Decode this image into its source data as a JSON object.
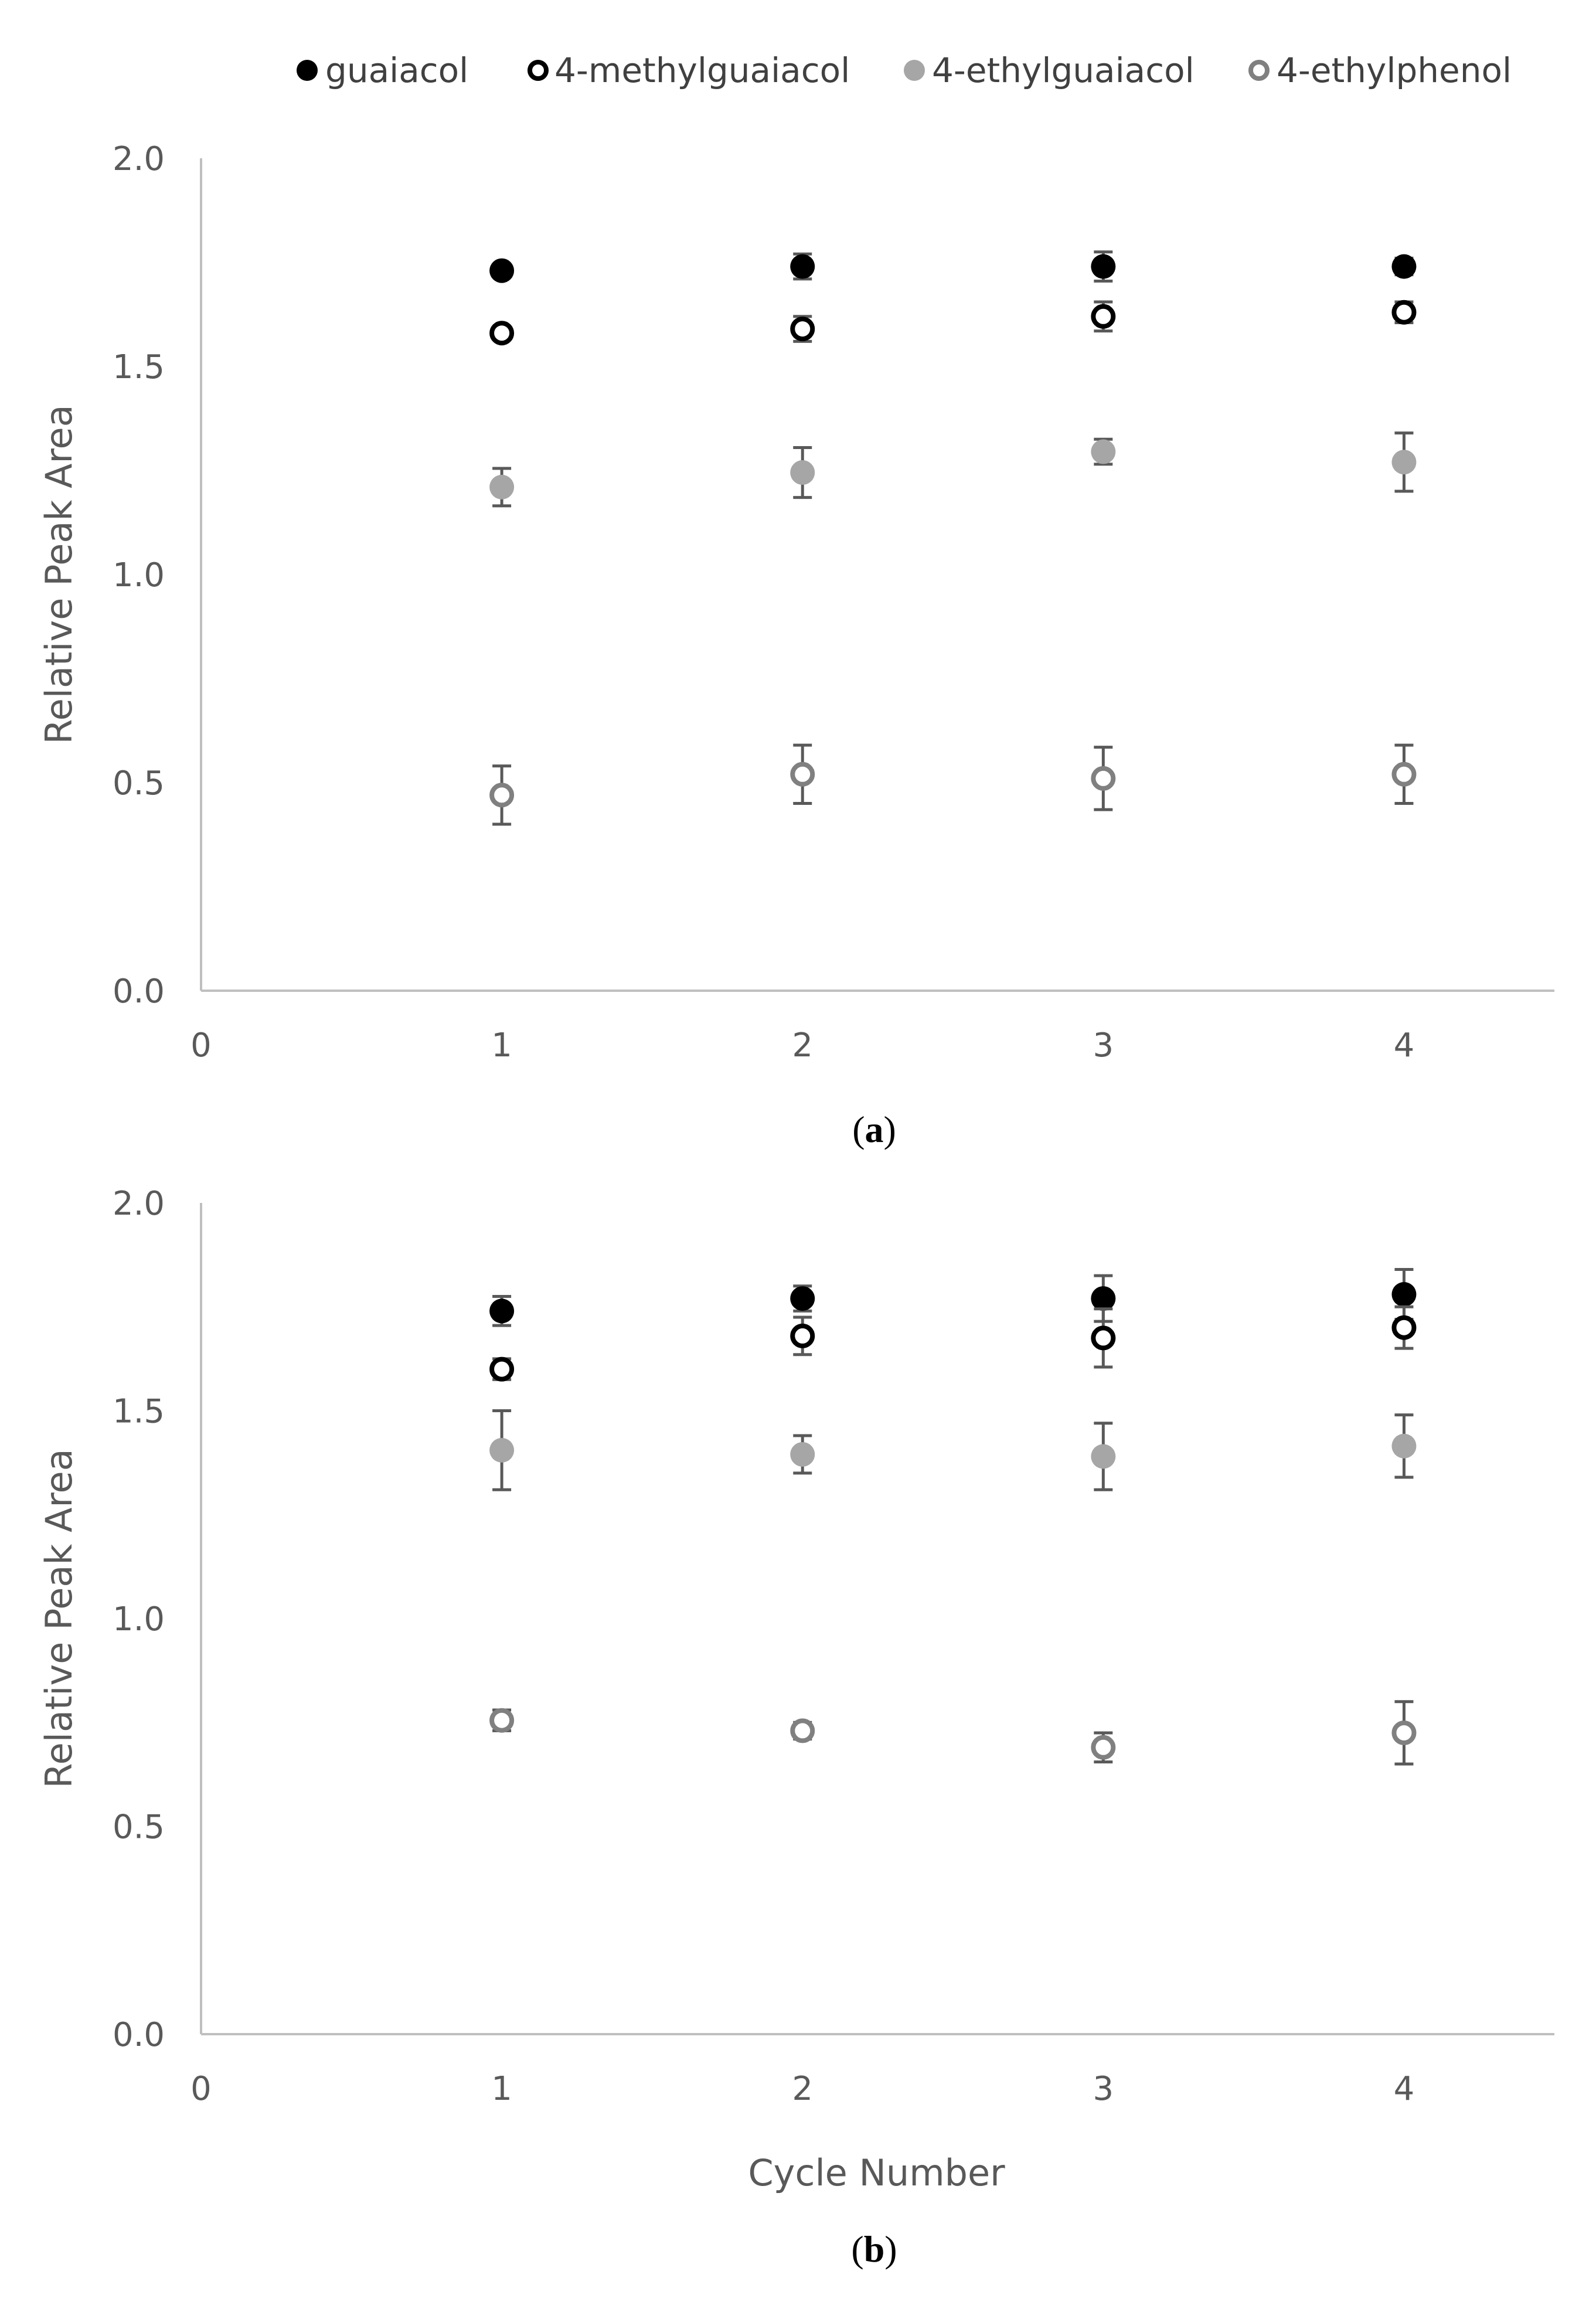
{
  "legend": [
    {
      "name": "guaiacol",
      "marker": "filled",
      "color": "#000000"
    },
    {
      "name": "4-methylguaiacol",
      "marker": "open",
      "color": "#000000"
    },
    {
      "name": "4-ethylguaiacol",
      "marker": "filled",
      "color": "#a6a6a6"
    },
    {
      "name": "4-ethylphenol",
      "marker": "open",
      "color": "#808080"
    }
  ],
  "colors": {
    "axis": "#bfbfbf",
    "tick_text": "#595959",
    "error_bar": "#595959"
  },
  "chart_data": [
    {
      "type": "scatter",
      "panel_label": "a",
      "xlabel": "",
      "ylabel": "Relative Peak Area",
      "xlim": [
        0,
        4.5
      ],
      "ylim": [
        0,
        2.0
      ],
      "x_ticks": [
        "0",
        "1",
        "2",
        "3",
        "4"
      ],
      "y_ticks": [
        "0.0",
        "0.5",
        "1.0",
        "1.5",
        "2.0"
      ],
      "grid": false,
      "legend_position": "top",
      "x": [
        1,
        2,
        3,
        4
      ],
      "series": [
        {
          "name": "guaiacol",
          "values": [
            1.73,
            1.74,
            1.74,
            1.74
          ],
          "error": [
            0.015,
            0.03,
            0.035,
            0.02
          ]
        },
        {
          "name": "4-methylguaiacol",
          "values": [
            1.58,
            1.59,
            1.62,
            1.63
          ],
          "error": [
            0.01,
            0.03,
            0.035,
            0.025
          ]
        },
        {
          "name": "4-ethylguaiacol",
          "values": [
            1.21,
            1.245,
            1.295,
            1.27
          ],
          "error": [
            0.045,
            0.06,
            0.03,
            0.07
          ]
        },
        {
          "name": "4-ethylphenol",
          "values": [
            0.47,
            0.52,
            0.51,
            0.52
          ],
          "error": [
            0.07,
            0.07,
            0.075,
            0.07
          ]
        }
      ]
    },
    {
      "type": "scatter",
      "panel_label": "b",
      "xlabel": "Cycle Number",
      "ylabel": "Relative Peak Area",
      "xlim": [
        0,
        4.5
      ],
      "ylim": [
        0,
        2.0
      ],
      "x_ticks": [
        "0",
        "1",
        "2",
        "3",
        "4"
      ],
      "y_ticks": [
        "0.0",
        "0.5",
        "1.0",
        "1.5",
        "2.0"
      ],
      "grid": false,
      "legend_position": "none",
      "x": [
        1,
        2,
        3,
        4
      ],
      "series": [
        {
          "name": "guaiacol",
          "values": [
            1.74,
            1.77,
            1.77,
            1.78
          ],
          "error": [
            0.035,
            0.03,
            0.055,
            0.06
          ]
        },
        {
          "name": "4-methylguaiacol",
          "values": [
            1.6,
            1.68,
            1.675,
            1.7
          ],
          "error": [
            0.025,
            0.045,
            0.07,
            0.05
          ]
        },
        {
          "name": "4-ethylguaiacol",
          "values": [
            1.405,
            1.395,
            1.39,
            1.415
          ],
          "error": [
            0.095,
            0.045,
            0.08,
            0.075
          ]
        },
        {
          "name": "4-ethylphenol",
          "values": [
            0.755,
            0.73,
            0.69,
            0.725
          ],
          "error": [
            0.025,
            0.02,
            0.035,
            0.075
          ]
        }
      ]
    }
  ]
}
